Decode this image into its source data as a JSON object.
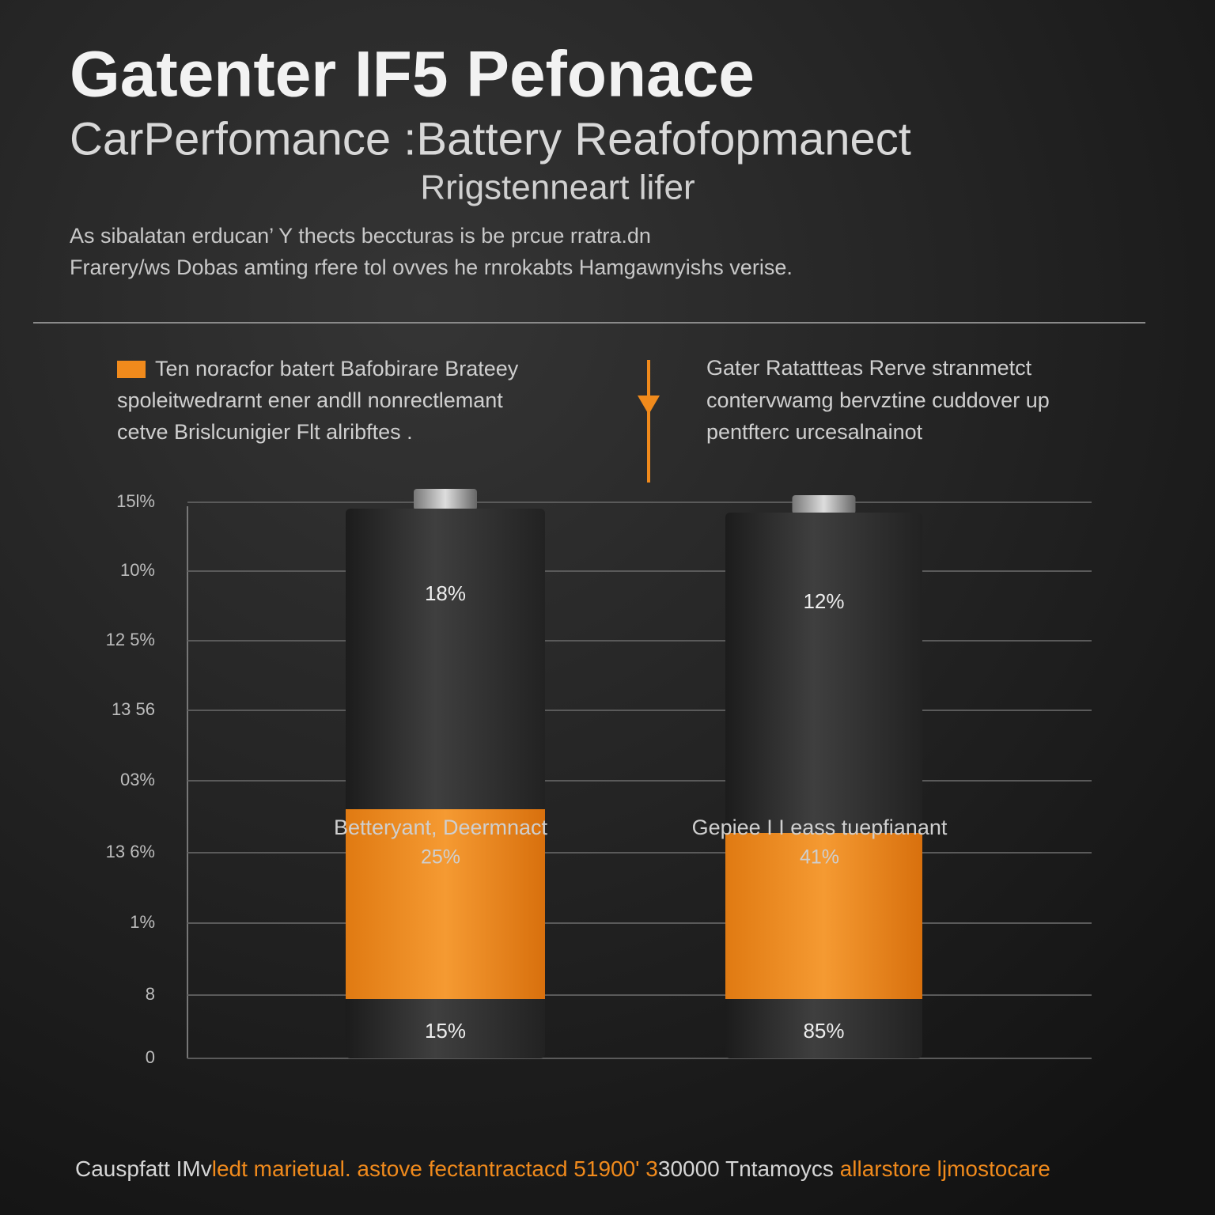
{
  "header": {
    "title": "Gatenter IF5 Pefonace",
    "subtitle": "CarPerfomance :Battery Reafofopmanect",
    "subtitle2": "Rrigstenneart lifer"
  },
  "intro": [
    "As sibalatan erducan’ Y  thects beccturas is be prcue rratra.dn",
    "Frarery/ws Dobas amting rfere tol ovves he rnrokabts Hamgawnyishs verise."
  ],
  "left_note": [
    "Ten noracfor batert Bafobirare Brateey",
    "spoleitwedrarnt ener andll nonrectlemant",
    "cetve Brislcunigier Flt alribftes ."
  ],
  "right_note": [
    "Gater Ratattteas Rerve stranmetct",
    "contervwamg bervztine cuddover up",
    "pentfterc urcesalnainot"
  ],
  "axis_labels": [
    "15l%",
    "10%",
    "12 5%",
    "13 56",
    "03%",
    "13 6%",
    "1%",
    "8",
    "0"
  ],
  "batteries": [
    {
      "top_label": "18%",
      "bottom_label": "15%",
      "caption": "Betteryant, Deermnact",
      "caption_value": "25%"
    },
    {
      "top_label": "12%",
      "bottom_label": "85%",
      "caption": "Gepiee I I eass tuepfianant",
      "caption_value": "41%"
    }
  ],
  "footer": [
    "Causpfatt IMv",
    "ledt marietual. astove fectantractacd 51900' 3",
    "30000 Tntamoycs ",
    "allarstore ljmostocare"
  ]
}
